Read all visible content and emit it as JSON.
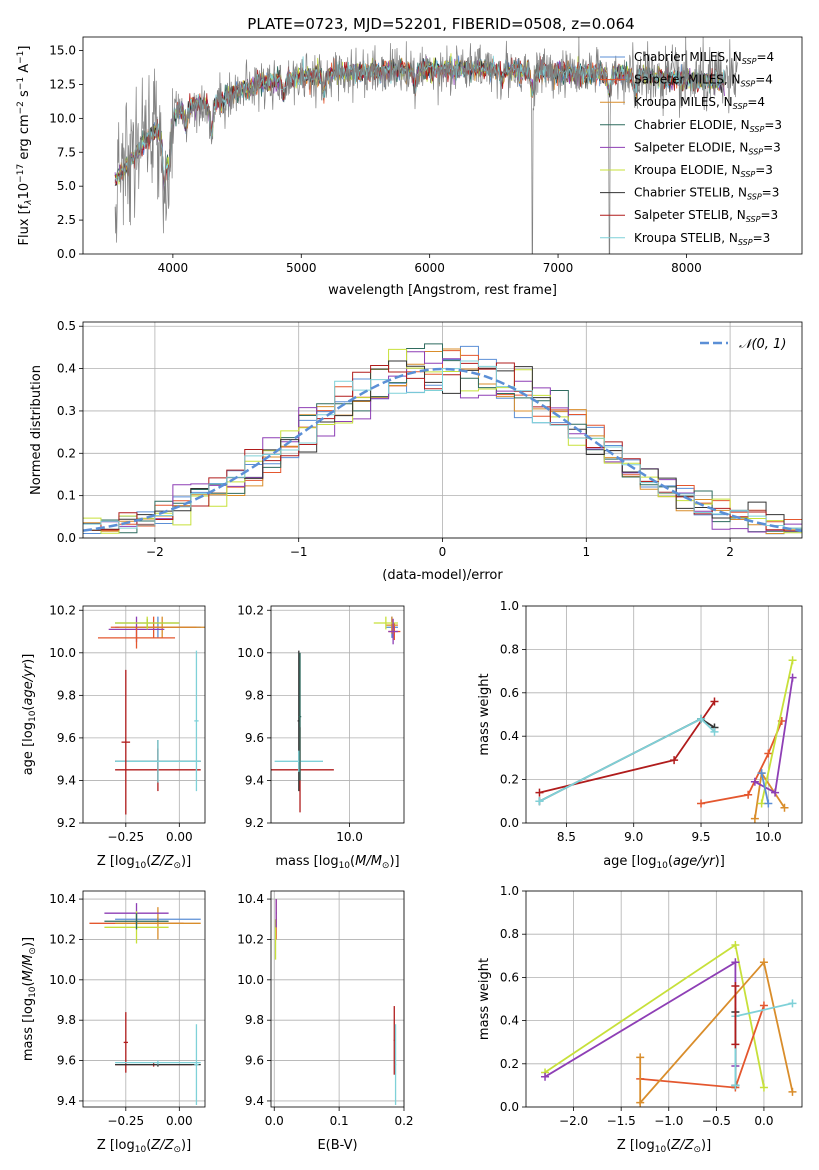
{
  "title": "PLATE=0723, MJD=52201, FIBERID=0508, z=0.064",
  "colors": {
    "chabrier_miles": "#5b8fd6",
    "salpeter_miles": "#e4572e",
    "kroupa_miles": "#d98d2b",
    "chabrier_elodie": "#2f6b5f",
    "salpeter_elodie": "#8e3fb5",
    "kroupa_elodie": "#c7e03a",
    "chabrier_stelib": "#333333",
    "salpeter_stelib": "#b01c1c",
    "kroupa_stelib": "#7fd1d8",
    "data": "#808080",
    "gauss": "#5b8fd6"
  },
  "chart_data": [
    {
      "id": "spectrum",
      "type": "line",
      "title": "PLATE=0723, MJD=52201, FIBERID=0508, z=0.064",
      "xlabel": "wavelength [Angstrom, rest frame]",
      "ylabel": "Flux [f_λ 10^-17 erg cm^-2 s^-1 A^-1]",
      "xlim": [
        3300,
        8900
      ],
      "ylim": [
        0,
        16
      ],
      "xticks": [
        4000,
        5000,
        6000,
        7000,
        8000
      ],
      "yticks": [
        "0.0",
        "2.5",
        "5.0",
        "7.5",
        "10.0",
        "12.5",
        "15.0"
      ],
      "legend": [
        "Chabrier MILES, N_SSP=4",
        "Salpeter MILES, N_SSP=4",
        "Kroupa MILES, N_SSP=4",
        "Chabrier ELODIE, N_SSP=3",
        "Salpeter ELODIE, N_SSP=3",
        "Kroupa ELODIE, N_SSP=3",
        "Chabrier STELIB, N_SSP=3",
        "Salpeter STELIB, N_SSP=3",
        "Kroupa STELIB, N_SSP=3"
      ],
      "legend_loc": "right",
      "continuum": [
        [
          3550,
          5.5
        ],
        [
          3650,
          6.5
        ],
        [
          3750,
          8
        ],
        [
          3850,
          9
        ],
        [
          3950,
          9
        ],
        [
          4000,
          10
        ],
        [
          4100,
          11
        ],
        [
          4300,
          11
        ],
        [
          4500,
          12
        ],
        [
          4800,
          12.8
        ],
        [
          5200,
          13.3
        ],
        [
          5600,
          13.5
        ],
        [
          6000,
          13.6
        ],
        [
          6400,
          13.7
        ],
        [
          6800,
          13.5
        ],
        [
          7200,
          13.3
        ],
        [
          7600,
          13.2
        ],
        [
          8000,
          12.8
        ],
        [
          8300,
          12.7
        ]
      ],
      "absorption": [
        [
          3934,
          5
        ],
        [
          3969,
          4
        ],
        [
          4102,
          2
        ],
        [
          4300,
          2.5
        ],
        [
          4861,
          1.5
        ],
        [
          5175,
          2
        ],
        [
          5890,
          1.5
        ],
        [
          6563,
          1
        ],
        [
          6800,
          2
        ],
        [
          7400,
          1.5
        ],
        [
          7600,
          1.5
        ],
        [
          8500,
          1
        ]
      ]
    },
    {
      "id": "residuals",
      "type": "histogram",
      "xlabel": "(data-model)/error",
      "ylabel": "Normed distribution",
      "xlim": [
        -2.5,
        2.5
      ],
      "ylim": [
        0,
        0.51
      ],
      "xticks": [
        -2,
        -1,
        0,
        1,
        2
      ],
      "yticks": [
        "0.0",
        "0.1",
        "0.2",
        "0.3",
        "0.4",
        "0.5"
      ],
      "bin_width": 0.125,
      "gauss_label": "N(0,1)",
      "legend_loc": "upper right"
    },
    {
      "id": "age_vs_Z",
      "type": "errorbar",
      "xlabel": "Z [log10(Z/Z_sun)]",
      "ylabel": "age [log10(age/yr)]",
      "xlim": [
        -0.45,
        0.12
      ],
      "ylim": [
        9.2,
        10.22
      ],
      "xticks": [
        "-0.25",
        "0.00"
      ],
      "yticks": [
        "9.2",
        "9.4",
        "9.6",
        "9.8",
        "10.0",
        "10.2"
      ],
      "points": [
        {
          "s": "chabrier_miles",
          "x": -0.1,
          "xerr": 0.2,
          "y": 10.12,
          "yerr": 0.05
        },
        {
          "s": "salpeter_miles",
          "x": -0.12,
          "xerr": 0.2,
          "y": 10.12,
          "yerr": 0.05
        },
        {
          "s": "kroupa_miles",
          "x": -0.08,
          "xerr": 0.2,
          "y": 10.12,
          "yerr": 0.05
        },
        {
          "s": "chabrier_elodie",
          "x": -0.15,
          "xerr": 0.15,
          "y": 10.14,
          "yerr": 0.02
        },
        {
          "s": "salpeter_elodie",
          "x": -0.2,
          "xerr": 0.13,
          "y": 10.11,
          "yerr": 0.06
        },
        {
          "s": "kroupa_elodie",
          "x": -0.15,
          "xerr": 0.15,
          "y": 10.14,
          "yerr": 0.03
        },
        {
          "s": "chabrier_stelib",
          "x": -0.1,
          "xerr": 0.2,
          "y": 9.49,
          "yerr": 0.1
        },
        {
          "s": "salpeter_stelib",
          "x": -0.1,
          "xerr": 0.2,
          "y": 9.45,
          "yerr": 0.1
        },
        {
          "s": "kroupa_stelib",
          "x": -0.1,
          "xerr": 0.2,
          "y": 9.49,
          "yerr": 0.1
        },
        {
          "s": "salpeter_miles",
          "x": -0.2,
          "xerr": 0.18,
          "y": 10.07,
          "yerr": 0.05
        },
        {
          "s": "salpeter_stelib",
          "x": -0.25,
          "xerr": 0.02,
          "y": 9.58,
          "yerr": 0.34
        },
        {
          "s": "kroupa_stelib",
          "x": 0.08,
          "xerr": 0.01,
          "y": 9.68,
          "yerr": 0.33
        }
      ]
    },
    {
      "id": "age_vs_mass",
      "type": "errorbar",
      "xlabel": "mass [log10(M/M_sun)]",
      "ylabel": "",
      "xlim": [
        9.35,
        10.45
      ],
      "ylim": [
        9.2,
        10.22
      ],
      "xticks": [
        "10.0"
      ],
      "yticks": [
        "9.2",
        "9.4",
        "9.6",
        "9.8",
        "10.0",
        "10.2"
      ],
      "points": [
        {
          "s": "chabrier_miles",
          "x": 10.35,
          "xerr": 0.05,
          "y": 10.12,
          "yerr": 0.05
        },
        {
          "s": "salpeter_miles",
          "x": 10.37,
          "xerr": 0.05,
          "y": 10.1,
          "yerr": 0.04
        },
        {
          "s": "kroupa_miles",
          "x": 10.35,
          "xerr": 0.05,
          "y": 10.13,
          "yerr": 0.04
        },
        {
          "s": "kroupa_elodie",
          "x": 10.3,
          "xerr": 0.1,
          "y": 10.14,
          "yerr": 0.03
        },
        {
          "s": "salpeter_elodie",
          "x": 10.36,
          "xerr": 0.04,
          "y": 10.1,
          "yerr": 0.06
        },
        {
          "s": "chabrier_stelib",
          "x": 9.58,
          "xerr": 0.01,
          "y": 9.68,
          "yerr": 0.33
        },
        {
          "s": "salpeter_stelib",
          "x": 9.59,
          "xerr": 0.28,
          "y": 9.45,
          "yerr": 0.2
        },
        {
          "s": "kroupa_stelib",
          "x": 9.58,
          "xerr": 0.2,
          "y": 9.49,
          "yerr": 0.05
        },
        {
          "s": "chabrier_elodie",
          "x": 9.59,
          "xerr": 0.01,
          "y": 9.7,
          "yerr": 0.3
        }
      ]
    },
    {
      "id": "massweight_vs_age",
      "type": "line",
      "xlabel": "age [log10(age/yr)]",
      "ylabel": "mass weight",
      "xlim": [
        8.2,
        10.25
      ],
      "ylim": [
        0,
        1
      ],
      "xticks": [
        "8.5",
        "9.0",
        "9.5",
        "10.0"
      ],
      "yticks": [
        "0.0",
        "0.2",
        "0.4",
        "0.6",
        "0.8",
        "1.0"
      ],
      "series": [
        {
          "s": "salpeter_stelib",
          "x": [
            8.3,
            9.3,
            9.6
          ],
          "y": [
            0.14,
            0.29,
            0.56
          ]
        },
        {
          "s": "chabrier_stelib",
          "x": [
            8.3,
            9.5,
            9.6
          ],
          "y": [
            0.1,
            0.48,
            0.44
          ]
        },
        {
          "s": "kroupa_stelib",
          "x": [
            8.3,
            9.5,
            9.6
          ],
          "y": [
            0.1,
            0.48,
            0.42
          ]
        },
        {
          "s": "salpeter_miles",
          "x": [
            9.5,
            9.85,
            10.0,
            10.1
          ],
          "y": [
            0.09,
            0.13,
            0.32,
            0.47
          ]
        },
        {
          "s": "kroupa_miles",
          "x": [
            9.9,
            9.95,
            10.12
          ],
          "y": [
            0.02,
            0.23,
            0.07
          ]
        },
        {
          "s": "salpeter_elodie",
          "x": [
            9.9,
            10.05,
            10.18
          ],
          "y": [
            0.19,
            0.14,
            0.67
          ]
        },
        {
          "s": "kroupa_elodie",
          "x": [
            9.95,
            10.18
          ],
          "y": [
            0.09,
            0.75
          ]
        },
        {
          "s": "chabrier_miles",
          "x": [
            9.95,
            10.0
          ],
          "y": [
            0.23,
            0.09
          ]
        }
      ]
    },
    {
      "id": "mass_vs_Z",
      "type": "errorbar",
      "xlabel": "Z [log10(Z/Z_sun)]",
      "ylabel": "mass [log10(M/M_sun)]",
      "xlim": [
        -0.45,
        0.12
      ],
      "ylim": [
        9.37,
        10.44
      ],
      "xticks": [
        "-0.25",
        "0.00"
      ],
      "yticks": [
        "9.4",
        "9.6",
        "9.8",
        "10.0",
        "10.2",
        "10.4"
      ],
      "points": [
        {
          "s": "chabrier_miles",
          "x": -0.1,
          "xerr": 0.2,
          "y": 10.3,
          "yerr": 0.01
        },
        {
          "s": "salpeter_miles",
          "x": -0.2,
          "xerr": 0.22,
          "y": 10.28,
          "yerr": 0.01
        },
        {
          "s": "kroupa_miles",
          "x": -0.1,
          "xerr": 0.2,
          "y": 10.28,
          "yerr": 0.08
        },
        {
          "s": "salpeter_elodie",
          "x": -0.2,
          "xerr": 0.15,
          "y": 10.33,
          "yerr": 0.05
        },
        {
          "s": "kroupa_elodie",
          "x": -0.2,
          "xerr": 0.15,
          "y": 10.26,
          "yerr": 0.08
        },
        {
          "s": "chabrier_elodie",
          "x": -0.2,
          "xerr": 0.15,
          "y": 10.29,
          "yerr": 0.04
        },
        {
          "s": "salpeter_stelib",
          "x": -0.12,
          "xerr": 0.18,
          "y": 9.58,
          "yerr": 0.01
        },
        {
          "s": "salpeter_stelib",
          "x": -0.25,
          "xerr": 0.01,
          "y": 9.69,
          "yerr": 0.15
        },
        {
          "s": "chabrier_stelib",
          "x": -0.1,
          "xerr": 0.2,
          "y": 9.58,
          "yerr": 0.01
        },
        {
          "s": "kroupa_stelib",
          "x": -0.1,
          "xerr": 0.2,
          "y": 9.59,
          "yerr": 0.01
        },
        {
          "s": "kroupa_stelib",
          "x": 0.08,
          "xerr": 0.01,
          "y": 9.58,
          "yerr": 0.2
        }
      ]
    },
    {
      "id": "mass_vs_ebv",
      "type": "errorbar",
      "xlabel": "E(B-V)",
      "ylabel": "",
      "xlim": [
        -0.005,
        0.2
      ],
      "ylim": [
        9.37,
        10.44
      ],
      "xticks": [
        "0.0",
        "0.1",
        "0.2"
      ],
      "yticks": [
        "9.4",
        "9.6",
        "9.8",
        "10.0",
        "10.2",
        "10.4"
      ],
      "points": [
        {
          "s": "salpeter_miles",
          "x": 0.003,
          "xerr": 0.001,
          "y": 10.3,
          "yerr": 0.1
        },
        {
          "s": "kroupa_elodie",
          "x": 0.002,
          "xerr": 0.001,
          "y": 10.2,
          "yerr": 0.1
        },
        {
          "s": "salpeter_elodie",
          "x": 0.003,
          "xerr": 0.001,
          "y": 10.33,
          "yerr": 0.07
        },
        {
          "s": "salpeter_stelib",
          "x": 0.185,
          "xerr": 0.001,
          "y": 9.7,
          "yerr": 0.17
        },
        {
          "s": "kroupa_stelib",
          "x": 0.187,
          "xerr": 0.001,
          "y": 9.58,
          "yerr": 0.2
        }
      ]
    },
    {
      "id": "massweight_vs_Z",
      "type": "line",
      "xlabel": "Z [log10(Z/Z_sun)]",
      "ylabel": "mass weight",
      "xlim": [
        -2.5,
        0.4
      ],
      "ylim": [
        0,
        1
      ],
      "xticks": [
        "-2.0",
        "-1.5",
        "-1.0",
        "-0.5",
        "0.0"
      ],
      "yticks": [
        "0.0",
        "0.2",
        "0.4",
        "0.6",
        "0.8",
        "1.0"
      ],
      "series": [
        {
          "s": "kroupa_elodie",
          "x": [
            -2.3,
            -0.3,
            0.0
          ],
          "y": [
            0.16,
            0.75,
            0.09
          ]
        },
        {
          "s": "salpeter_elodie",
          "x": [
            -2.3,
            -0.3,
            -0.3
          ],
          "y": [
            0.14,
            0.67,
            0.19
          ]
        },
        {
          "s": "salpeter_miles",
          "x": [
            -1.3,
            -0.3,
            0.0
          ],
          "y": [
            0.13,
            0.09,
            0.47
          ]
        },
        {
          "s": "kroupa_miles",
          "x": [
            -1.3,
            -1.3,
            0.0,
            0.3
          ],
          "y": [
            0.23,
            0.02,
            0.67,
            0.07
          ]
        },
        {
          "s": "chabrier_stelib",
          "x": [
            -0.3,
            -0.3
          ],
          "y": [
            0.1,
            0.44
          ]
        },
        {
          "s": "kroupa_stelib",
          "x": [
            -0.3,
            -0.3,
            0.3
          ],
          "y": [
            0.1,
            0.42,
            0.48
          ]
        },
        {
          "s": "salpeter_stelib",
          "x": [
            -0.3,
            -0.3
          ],
          "y": [
            0.29,
            0.56
          ]
        }
      ]
    }
  ]
}
